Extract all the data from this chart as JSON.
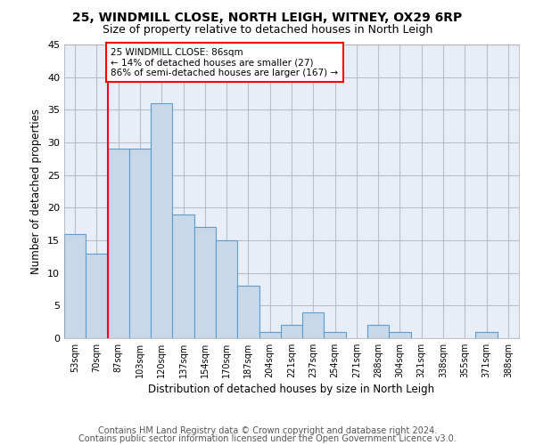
{
  "title1": "25, WINDMILL CLOSE, NORTH LEIGH, WITNEY, OX29 6RP",
  "title2": "Size of property relative to detached houses in North Leigh",
  "xlabel": "Distribution of detached houses by size in North Leigh",
  "ylabel": "Number of detached properties",
  "categories": [
    "53sqm",
    "70sqm",
    "87sqm",
    "103sqm",
    "120sqm",
    "137sqm",
    "154sqm",
    "170sqm",
    "187sqm",
    "204sqm",
    "221sqm",
    "237sqm",
    "254sqm",
    "271sqm",
    "288sqm",
    "304sqm",
    "321sqm",
    "338sqm",
    "355sqm",
    "371sqm",
    "388sqm"
  ],
  "values": [
    16,
    13,
    29,
    29,
    36,
    19,
    17,
    15,
    8,
    1,
    2,
    4,
    1,
    0,
    2,
    1,
    0,
    0,
    0,
    1,
    0
  ],
  "bar_color": "#c8d8e8",
  "bar_edge_color": "#5b9bd5",
  "annotation_box_text": "25 WINDMILL CLOSE: 86sqm\n← 14% of detached houses are smaller (27)\n86% of semi-detached houses are larger (167) →",
  "annotation_box_color": "white",
  "annotation_box_edge_color": "red",
  "vline_x": 1.5,
  "vline_color": "red",
  "ylim": [
    0,
    45
  ],
  "yticks": [
    0,
    5,
    10,
    15,
    20,
    25,
    30,
    35,
    40,
    45
  ],
  "grid_color": "#bbbbcc",
  "background_color": "#e8eef8",
  "footer1": "Contains HM Land Registry data © Crown copyright and database right 2024.",
  "footer2": "Contains public sector information licensed under the Open Government Licence v3.0.",
  "title1_fontsize": 10,
  "title2_fontsize": 9,
  "xlabel_fontsize": 8.5,
  "ylabel_fontsize": 8.5,
  "footer_fontsize": 7,
  "annotation_fontsize": 7.5
}
